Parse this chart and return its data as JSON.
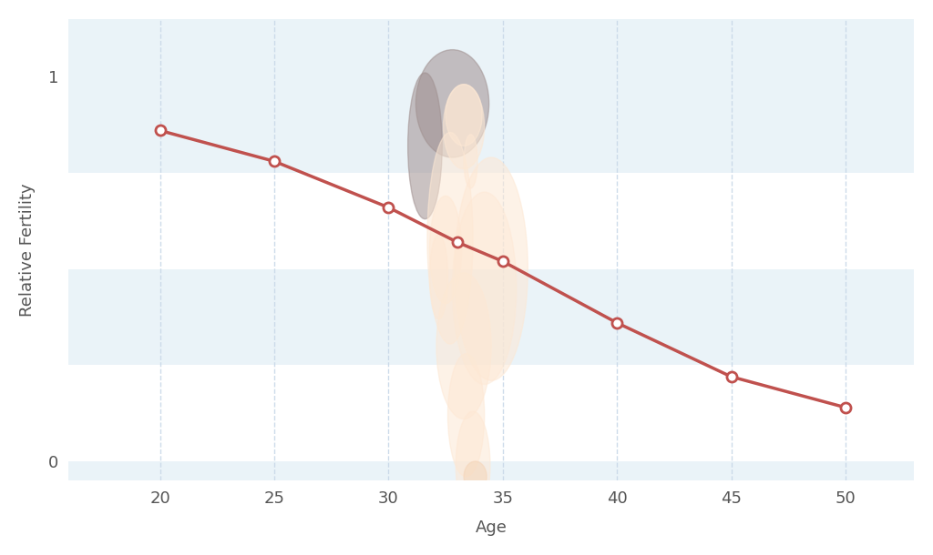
{
  "ages": [
    20,
    25,
    30,
    33,
    35,
    40,
    45,
    50
  ],
  "fertility": [
    0.86,
    0.78,
    0.66,
    0.57,
    0.52,
    0.36,
    0.22,
    0.14
  ],
  "line_color": "#c0514e",
  "background_color": "#ffffff",
  "band_color": "#eaf3f8",
  "xlabel": "Age",
  "ylabel": "Relative Fertility",
  "xlim": [
    16,
    53
  ],
  "ylim": [
    -0.05,
    1.15
  ],
  "xticks": [
    20,
    25,
    30,
    35,
    40,
    45,
    50
  ],
  "yticks": [
    0,
    1
  ],
  "grid_color": "#c8d8e8",
  "axis_label_fontsize": 13,
  "tick_fontsize": 13
}
